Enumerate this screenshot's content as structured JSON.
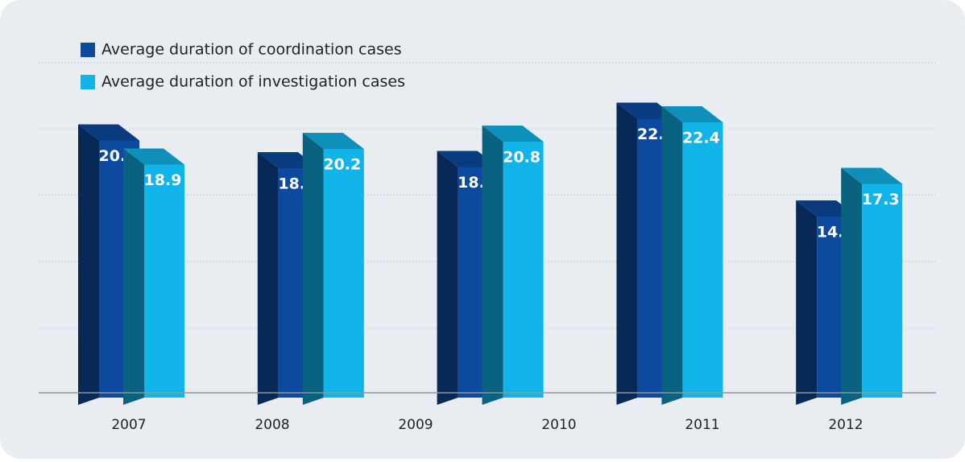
{
  "chart_data": {
    "type": "bar3d",
    "categories": [
      "2007",
      "2008",
      "2009",
      "2010",
      "2011",
      "2012"
    ],
    "series": [
      {
        "name": "Average duration of coordination cases",
        "color": "#0b4a9e",
        "values": [
          20.9,
          18.6,
          18.7,
          null,
          22.7,
          14.6
        ]
      },
      {
        "name": "Average duration of investigation cases",
        "color": "#11b4e8",
        "values": [
          18.9,
          20.2,
          20.8,
          null,
          22.4,
          17.3
        ]
      }
    ],
    "ylim": [
      0,
      27
    ],
    "grid": true,
    "legend": "top-left"
  }
}
